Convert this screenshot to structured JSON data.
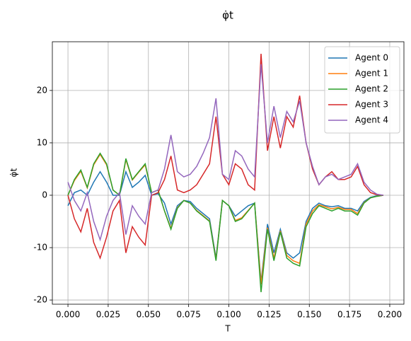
{
  "chart_data": {
    "type": "line",
    "title": "φ̇t",
    "xlabel": "T",
    "ylabel": "φ̇t",
    "x": [
      0,
      0.004,
      0.008,
      0.012,
      0.016,
      0.02,
      0.024,
      0.028,
      0.032,
      0.036,
      0.04,
      0.044,
      0.048,
      0.052,
      0.056,
      0.06,
      0.064,
      0.068,
      0.072,
      0.076,
      0.08,
      0.084,
      0.088,
      0.092,
      0.096,
      0.1,
      0.104,
      0.108,
      0.112,
      0.116,
      0.12,
      0.124,
      0.128,
      0.132,
      0.136,
      0.14,
      0.144,
      0.148,
      0.152,
      0.156,
      0.16,
      0.164,
      0.168,
      0.172,
      0.176,
      0.18,
      0.184,
      0.188,
      0.192,
      0.196
    ],
    "series": [
      {
        "name": "Agent 0",
        "color": "#1f77b4",
        "values": [
          -2,
          0.5,
          1,
          0,
          2.5,
          4.5,
          2.5,
          0,
          0,
          4.5,
          1.5,
          2.5,
          3.8,
          0,
          0.3,
          -1.5,
          -5.5,
          -2,
          -1,
          -1.2,
          -2.5,
          -3.5,
          -4.5,
          -12,
          -1,
          -2,
          -4,
          -3,
          -2,
          -1.5,
          -16.5,
          -5.5,
          -11,
          -6.5,
          -11,
          -12,
          -11,
          -5,
          -2.5,
          -1.5,
          -2,
          -2.2,
          -2,
          -2.5,
          -2.5,
          -3,
          -1.2,
          -0.4,
          -0.1,
          0
        ]
      },
      {
        "name": "Agent 1",
        "color": "#ff7f0e",
        "values": [
          0,
          2.8,
          4.6,
          1.4,
          5.8,
          7.8,
          5.8,
          1,
          0,
          6.8,
          2.9,
          4.4,
          5.8,
          0.5,
          1,
          -3,
          -6.3,
          -2.4,
          -1,
          -1.5,
          -2.9,
          -3.9,
          -4.9,
          -12.3,
          -1,
          -2,
          -4.8,
          -4.3,
          -2.9,
          -1.5,
          -17,
          -6.2,
          -12,
          -6.8,
          -11.5,
          -12.5,
          -13,
          -5.5,
          -3,
          -1.8,
          -2.2,
          -2.6,
          -2.3,
          -2.7,
          -2.7,
          -3.5,
          -1.4,
          -0.5,
          -0.2,
          0
        ]
      },
      {
        "name": "Agent 2",
        "color": "#2ca02c",
        "values": [
          0,
          3,
          4.8,
          1.5,
          6,
          8,
          6,
          1,
          0,
          7,
          3,
          4.5,
          6,
          0.5,
          1,
          -3,
          -6.5,
          -2.5,
          -1,
          -1.5,
          -3,
          -4,
          -5,
          -12.5,
          -1,
          -2,
          -5,
          -4.5,
          -3,
          -1.5,
          -18.5,
          -6.5,
          -12.5,
          -7,
          -12,
          -13,
          -13.5,
          -6,
          -3.5,
          -2,
          -2.5,
          -3,
          -2.5,
          -3,
          -3,
          -3.8,
          -1.5,
          -0.5,
          -0.2,
          0
        ]
      },
      {
        "name": "Agent 3",
        "color": "#d62728",
        "values": [
          0,
          -4.5,
          -7,
          -2.5,
          -9,
          -12,
          -8,
          -3,
          -1,
          -11,
          -6,
          -8,
          -9.5,
          0,
          0.5,
          3,
          7.5,
          1,
          0.5,
          1,
          2,
          4,
          6,
          15,
          4,
          2,
          6,
          5,
          2,
          1,
          27,
          8.5,
          15,
          9,
          15,
          13,
          19,
          10,
          5,
          2,
          3.5,
          4.5,
          3,
          3,
          3.5,
          5.5,
          2,
          0.5,
          0.1,
          0
        ]
      },
      {
        "name": "Agent 4",
        "color": "#9467bd",
        "values": [
          2.5,
          -1,
          -3,
          0.5,
          -5,
          -8.5,
          -4,
          -1,
          0.5,
          -7.5,
          -2,
          -4,
          -5.5,
          0.5,
          1,
          5,
          11.5,
          4.5,
          3.5,
          4,
          5.5,
          8,
          11,
          18.5,
          4,
          3,
          8.5,
          7.5,
          5,
          3.5,
          25,
          10,
          17,
          11,
          16,
          14,
          18,
          10,
          5.5,
          2,
          3.5,
          4,
          3,
          3.5,
          4,
          6,
          2.5,
          1,
          0.2,
          0
        ]
      }
    ],
    "xlim": [
      -0.0097,
      0.2088
    ],
    "ylim": [
      -20.8,
      29.3
    ],
    "xticks": [
      {
        "value": 0,
        "label": "0.000"
      },
      {
        "value": 0.025,
        "label": "0.025"
      },
      {
        "value": 0.05,
        "label": "0.050"
      },
      {
        "value": 0.075,
        "label": "0.075"
      },
      {
        "value": 0.1,
        "label": "0.100"
      },
      {
        "value": 0.125,
        "label": "0.125"
      },
      {
        "value": 0.15,
        "label": "0.150"
      },
      {
        "value": 0.175,
        "label": "0.175"
      },
      {
        "value": 0.2,
        "label": "0.200"
      }
    ],
    "yticks": [
      -20,
      -10,
      0,
      10,
      20
    ],
    "grid": true,
    "legend": "upper right"
  }
}
